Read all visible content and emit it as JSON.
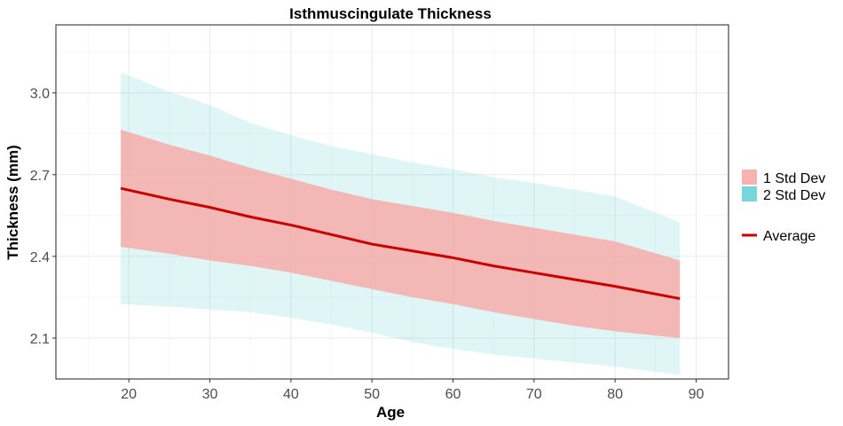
{
  "chart_data": {
    "type": "area",
    "title": "Isthmuscingulate Thickness",
    "xlabel": "Age",
    "ylabel": "Thickness (mm)",
    "xlim": [
      11,
      94
    ],
    "ylim": [
      1.95,
      3.25
    ],
    "x_ticks": [
      20,
      30,
      40,
      50,
      60,
      70,
      80,
      90
    ],
    "y_ticks": [
      2.1,
      2.4,
      2.7,
      3.0
    ],
    "grid": true,
    "legend_position": "right",
    "x": [
      19,
      25,
      30,
      35,
      40,
      45,
      50,
      55,
      60,
      65,
      70,
      75,
      80,
      88
    ],
    "series": [
      {
        "name": "Average",
        "kind": "line",
        "color": "#cc0000",
        "values": [
          2.65,
          2.61,
          2.58,
          2.545,
          2.515,
          2.48,
          2.445,
          2.42,
          2.395,
          2.365,
          2.34,
          2.315,
          2.29,
          2.245
        ]
      },
      {
        "name": "1 Std Dev",
        "kind": "band",
        "color": "#f8a9a5",
        "lower": [
          2.435,
          2.41,
          2.385,
          2.365,
          2.34,
          2.31,
          2.28,
          2.25,
          2.225,
          2.195,
          2.17,
          2.145,
          2.125,
          2.1
        ],
        "upper": [
          2.865,
          2.81,
          2.77,
          2.725,
          2.685,
          2.645,
          2.61,
          2.585,
          2.56,
          2.53,
          2.505,
          2.48,
          2.455,
          2.385
        ]
      },
      {
        "name": "2 Std Dev",
        "kind": "band",
        "color": "#7fd8dd",
        "lower": [
          2.225,
          2.215,
          2.205,
          2.195,
          2.175,
          2.15,
          2.12,
          2.085,
          2.06,
          2.04,
          2.025,
          2.01,
          1.995,
          1.965
        ],
        "upper": [
          3.075,
          3.005,
          2.955,
          2.89,
          2.845,
          2.805,
          2.775,
          2.745,
          2.72,
          2.69,
          2.67,
          2.645,
          2.62,
          2.525
        ]
      }
    ],
    "legend": {
      "fill_items": [
        {
          "label": "1 Std Dev",
          "color": "#f8b3ae"
        },
        {
          "label": "2 Std Dev",
          "color": "#76d8dc"
        }
      ],
      "line_items": [
        {
          "label": "Average",
          "color": "#cc0000"
        }
      ]
    }
  }
}
